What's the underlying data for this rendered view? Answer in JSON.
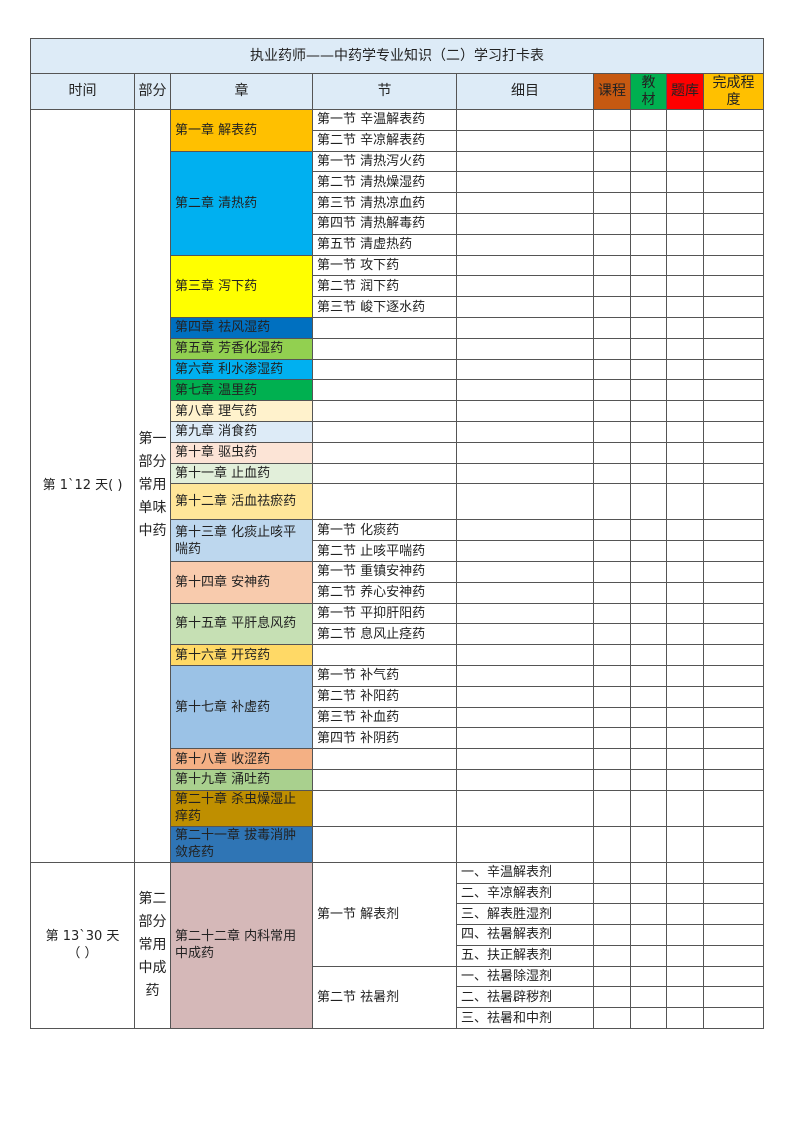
{
  "title": "执业药师——中药学专业知识（二）学习打卡表",
  "headers": {
    "time": "时间",
    "part": "部分",
    "chapter": "章",
    "section": "节",
    "item": "细目",
    "course": "课程",
    "textbook": "教材",
    "questions": "题库",
    "progress": "完成程度"
  },
  "header_colors": {
    "course": "#C65911",
    "textbook": "#00B050",
    "questions": "#FF0000",
    "progress": "#FFC000",
    "bg": "#DDEBF7"
  },
  "parts": [
    {
      "time": "第 1`12 天(    )",
      "label": "第一部分常用单味中药",
      "chapters": [
        {
          "label": "第一章 解表药",
          "color": "#FFC000",
          "sections": [
            {
              "label": "第一节 辛温解表药"
            },
            {
              "label": "第二节 辛凉解表药"
            }
          ]
        },
        {
          "label": "第二章 清热药",
          "color": "#00B0F0",
          "sections": [
            {
              "label": "第一节 清热泻火药"
            },
            {
              "label": "第二节 清热燥湿药"
            },
            {
              "label": "第三节 清热凉血药"
            },
            {
              "label": "第四节 清热解毒药"
            },
            {
              "label": "第五节 清虚热药"
            }
          ]
        },
        {
          "label": "第三章   泻下药",
          "color": "#FFFF00",
          "sections": [
            {
              "label": "第一节 攻下药"
            },
            {
              "label": "第二节 润下药"
            },
            {
              "label": "第三节 峻下逐水药"
            }
          ]
        },
        {
          "label": "第四章 祛风湿药",
          "color": "#0070C0",
          "sections": []
        },
        {
          "label": "第五章 芳香化湿药",
          "color": "#92D050",
          "sections": []
        },
        {
          "label": "第六章 利水渗湿药",
          "color": "#00B0F0",
          "sections": []
        },
        {
          "label": "第七章 温里药",
          "color": "#00B050",
          "sections": []
        },
        {
          "label": "第八章 理气药",
          "color": "#FFF2CC",
          "sections": []
        },
        {
          "label": "第九章 消食药",
          "color": "#DDEBF7",
          "sections": []
        },
        {
          "label": "第十章 驱虫药",
          "color": "#FCE4D6",
          "sections": []
        },
        {
          "label": "第十一章 止血药",
          "color": "#E2EFDA",
          "sections": []
        },
        {
          "label": "第十二章 活血祛瘀药",
          "color": "#FFE699",
          "sections": []
        },
        {
          "label": "第十三章 化痰止咳平喘药",
          "color": "#BDD7EE",
          "sections": [
            {
              "label": "第一节 化痰药"
            },
            {
              "label": "第二节 止咳平喘药"
            }
          ]
        },
        {
          "label": "第十四章 安神药",
          "color": "#F8CBAD",
          "sections": [
            {
              "label": "第一节 重镇安神药"
            },
            {
              "label": "第二节 养心安神药"
            }
          ]
        },
        {
          "label": "第十五章 平肝息风药",
          "color": "#C6E0B4",
          "sections": [
            {
              "label": "第一节 平抑肝阳药"
            },
            {
              "label": "第二节 息风止痉药"
            }
          ]
        },
        {
          "label": "第十六章 开窍药",
          "color": "#FFD966",
          "sections": []
        },
        {
          "label": "第十七章 补虚药",
          "color": "#9BC2E6",
          "sections": [
            {
              "label": "第一节 补气药"
            },
            {
              "label": "第二节 补阳药"
            },
            {
              "label": "第三节 补血药"
            },
            {
              "label": "第四节 补阴药"
            }
          ]
        },
        {
          "label": "第十八章 收涩药",
          "color": "#F4B084",
          "sections": []
        },
        {
          "label": "第十九章 涌吐药",
          "color": "#A9D08E",
          "sections": []
        },
        {
          "label": "第二十章 杀虫燥湿止痒药",
          "color": "#BF8F00",
          "sections": []
        },
        {
          "label": "第二十一章 拔毒消肿敛疮药",
          "color": "#2F75B5",
          "sections": []
        }
      ]
    },
    {
      "time": "第 13`30 天\n（  ）",
      "label": "第二部分常用中成药",
      "chapters": [
        {
          "label": "第二十二章 内科常用中成药",
          "color": "#D5B8B8",
          "sections": [
            {
              "label": "第一节 解表剂",
              "items": [
                "一、辛温解表剂",
                "二、辛凉解表剂",
                "三、解表胜湿剂",
                "四、祛暑解表剂",
                "五、扶正解表剂"
              ]
            },
            {
              "label": "第二节 祛暑剂",
              "items": [
                "一、祛暑除湿剂",
                "二、祛暑辟秽剂",
                "三、祛暑和中剂"
              ]
            }
          ]
        }
      ]
    }
  ]
}
